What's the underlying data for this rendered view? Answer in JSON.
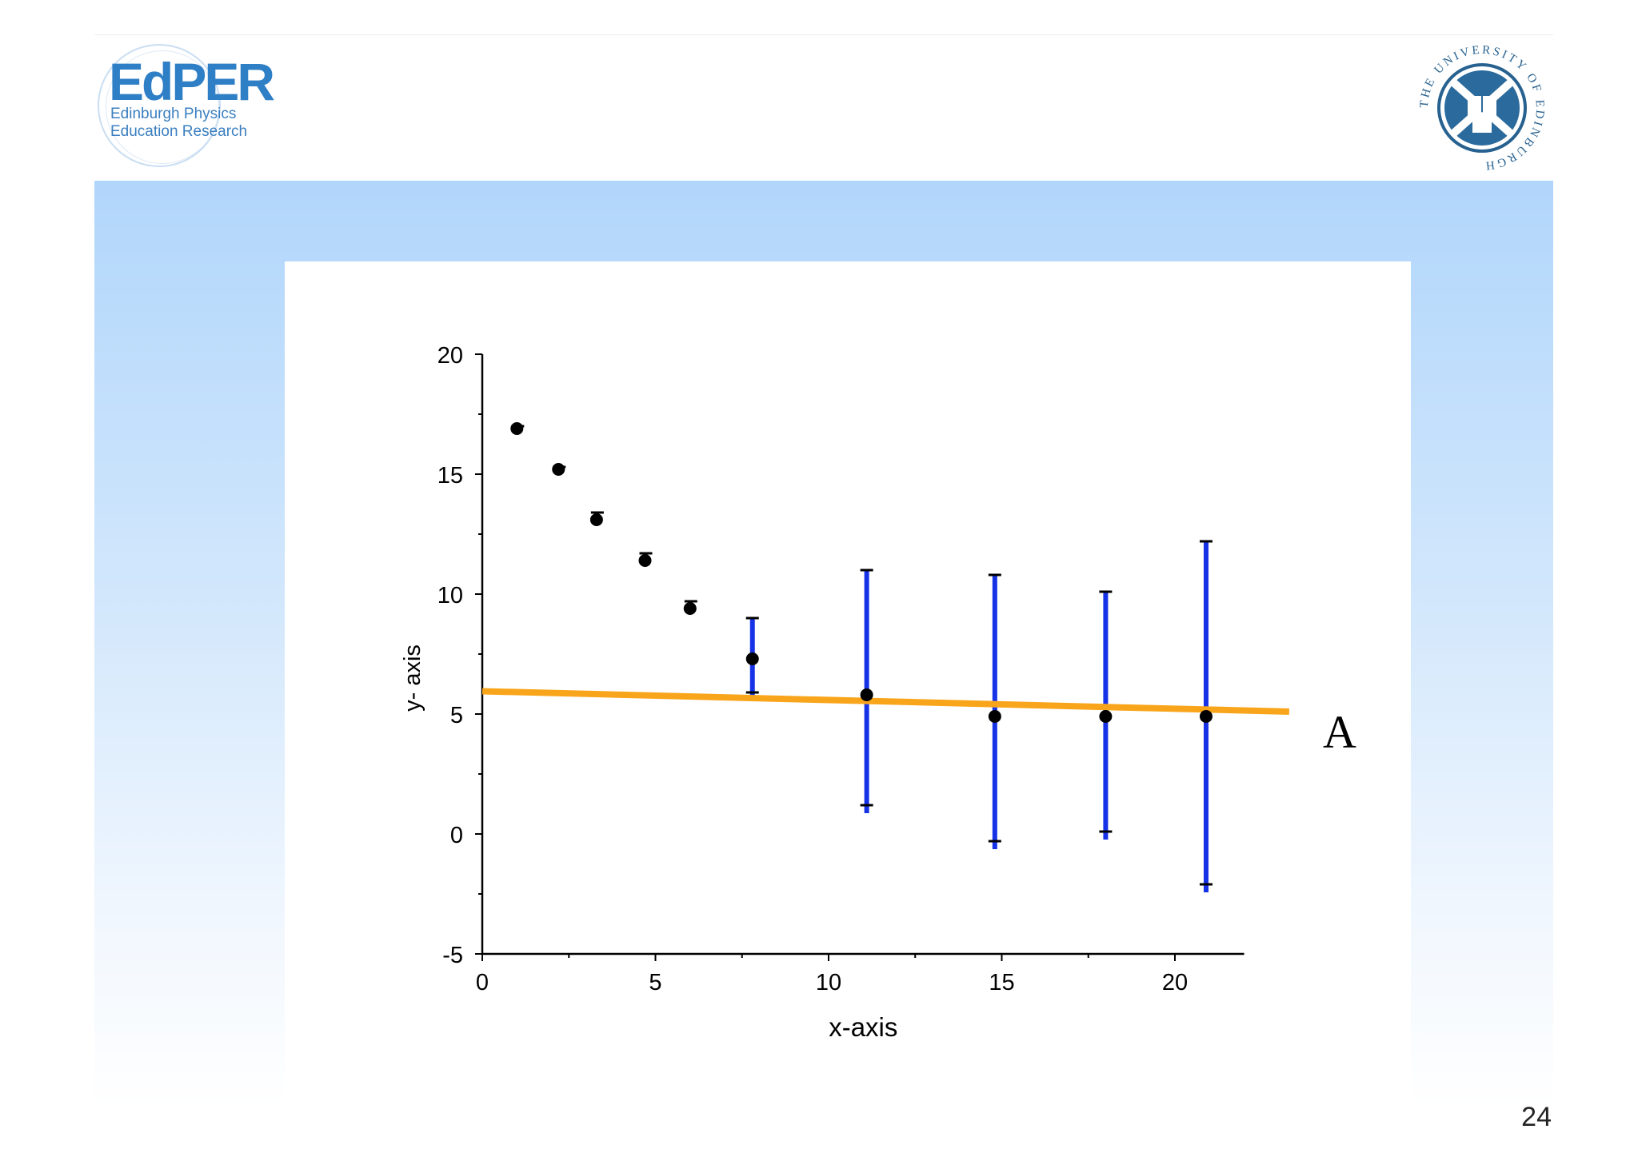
{
  "slide": {
    "page_number": "24"
  },
  "logos": {
    "edper_word": "EdPER",
    "edper_line1": "Edinburgh Physics",
    "edper_line2": "Education Research",
    "university_text": "THE UNIVERSITY OF EDINBURGH"
  },
  "colors": {
    "frame_top": "#b1d6fb",
    "error_bar_blue": "#1532e6",
    "fit_line_orange": "#f9a51b",
    "points": "#000000",
    "brand_blue": "#2f7fc6"
  },
  "chart_data": {
    "type": "scatter",
    "xlabel": "x-axis",
    "ylabel": "y- axis",
    "xlim": [
      0,
      22
    ],
    "ylim": [
      -5,
      20
    ],
    "x_ticks": [
      0,
      5,
      10,
      15,
      20
    ],
    "y_ticks": [
      -5,
      0,
      5,
      10,
      15,
      20
    ],
    "x_tick_labels": [
      "0",
      "5",
      "10",
      "15",
      "20"
    ],
    "y_tick_labels": [
      "-5",
      "0",
      "5",
      "10",
      "15",
      "20"
    ],
    "grid": false,
    "points": [
      {
        "x": 1.0,
        "y": 16.9,
        "err_lo": 16.9,
        "err_hi": 17.0
      },
      {
        "x": 2.2,
        "y": 15.2,
        "err_lo": 15.2,
        "err_hi": 15.3
      },
      {
        "x": 3.3,
        "y": 13.1,
        "err_lo": 13.1,
        "err_hi": 13.4
      },
      {
        "x": 4.7,
        "y": 11.4,
        "err_lo": 11.3,
        "err_hi": 11.7
      },
      {
        "x": 6.0,
        "y": 9.4,
        "err_lo": 9.4,
        "err_hi": 9.7
      },
      {
        "x": 7.8,
        "y": 7.3,
        "err_lo": 5.9,
        "err_hi": 9.0
      },
      {
        "x": 11.1,
        "y": 5.8,
        "err_lo": 1.2,
        "err_hi": 11.0
      },
      {
        "x": 14.8,
        "y": 4.9,
        "err_lo": -0.3,
        "err_hi": 10.8
      },
      {
        "x": 18.0,
        "y": 4.9,
        "err_lo": 0.1,
        "err_hi": 10.1
      },
      {
        "x": 20.9,
        "y": 4.9,
        "err_lo": -2.1,
        "err_hi": 12.2
      }
    ],
    "fit_line": {
      "label": "A",
      "x": [
        0,
        23.3
      ],
      "y": [
        5.95,
        5.1
      ]
    }
  }
}
